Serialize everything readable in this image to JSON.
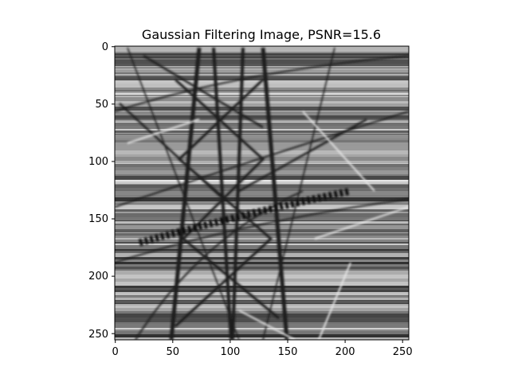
{
  "figure": {
    "title": "Gaussian Filtering Image, PSNR=15.6",
    "image_description_icon": "grayscale-power-tower-image",
    "axes": {
      "x": {
        "range": [
          0,
          255
        ],
        "ticks": [
          0,
          50,
          100,
          150,
          200,
          250
        ],
        "tick_labels": [
          "0",
          "50",
          "100",
          "150",
          "200",
          "250"
        ]
      },
      "y": {
        "range": [
          0,
          255
        ],
        "inverted": true,
        "ticks": [
          0,
          50,
          100,
          150,
          200,
          250
        ],
        "tick_labels": [
          "0",
          "50",
          "100",
          "150",
          "200",
          "250"
        ]
      }
    },
    "colors": {
      "background": "#ffffff",
      "axis": "#000000"
    }
  }
}
